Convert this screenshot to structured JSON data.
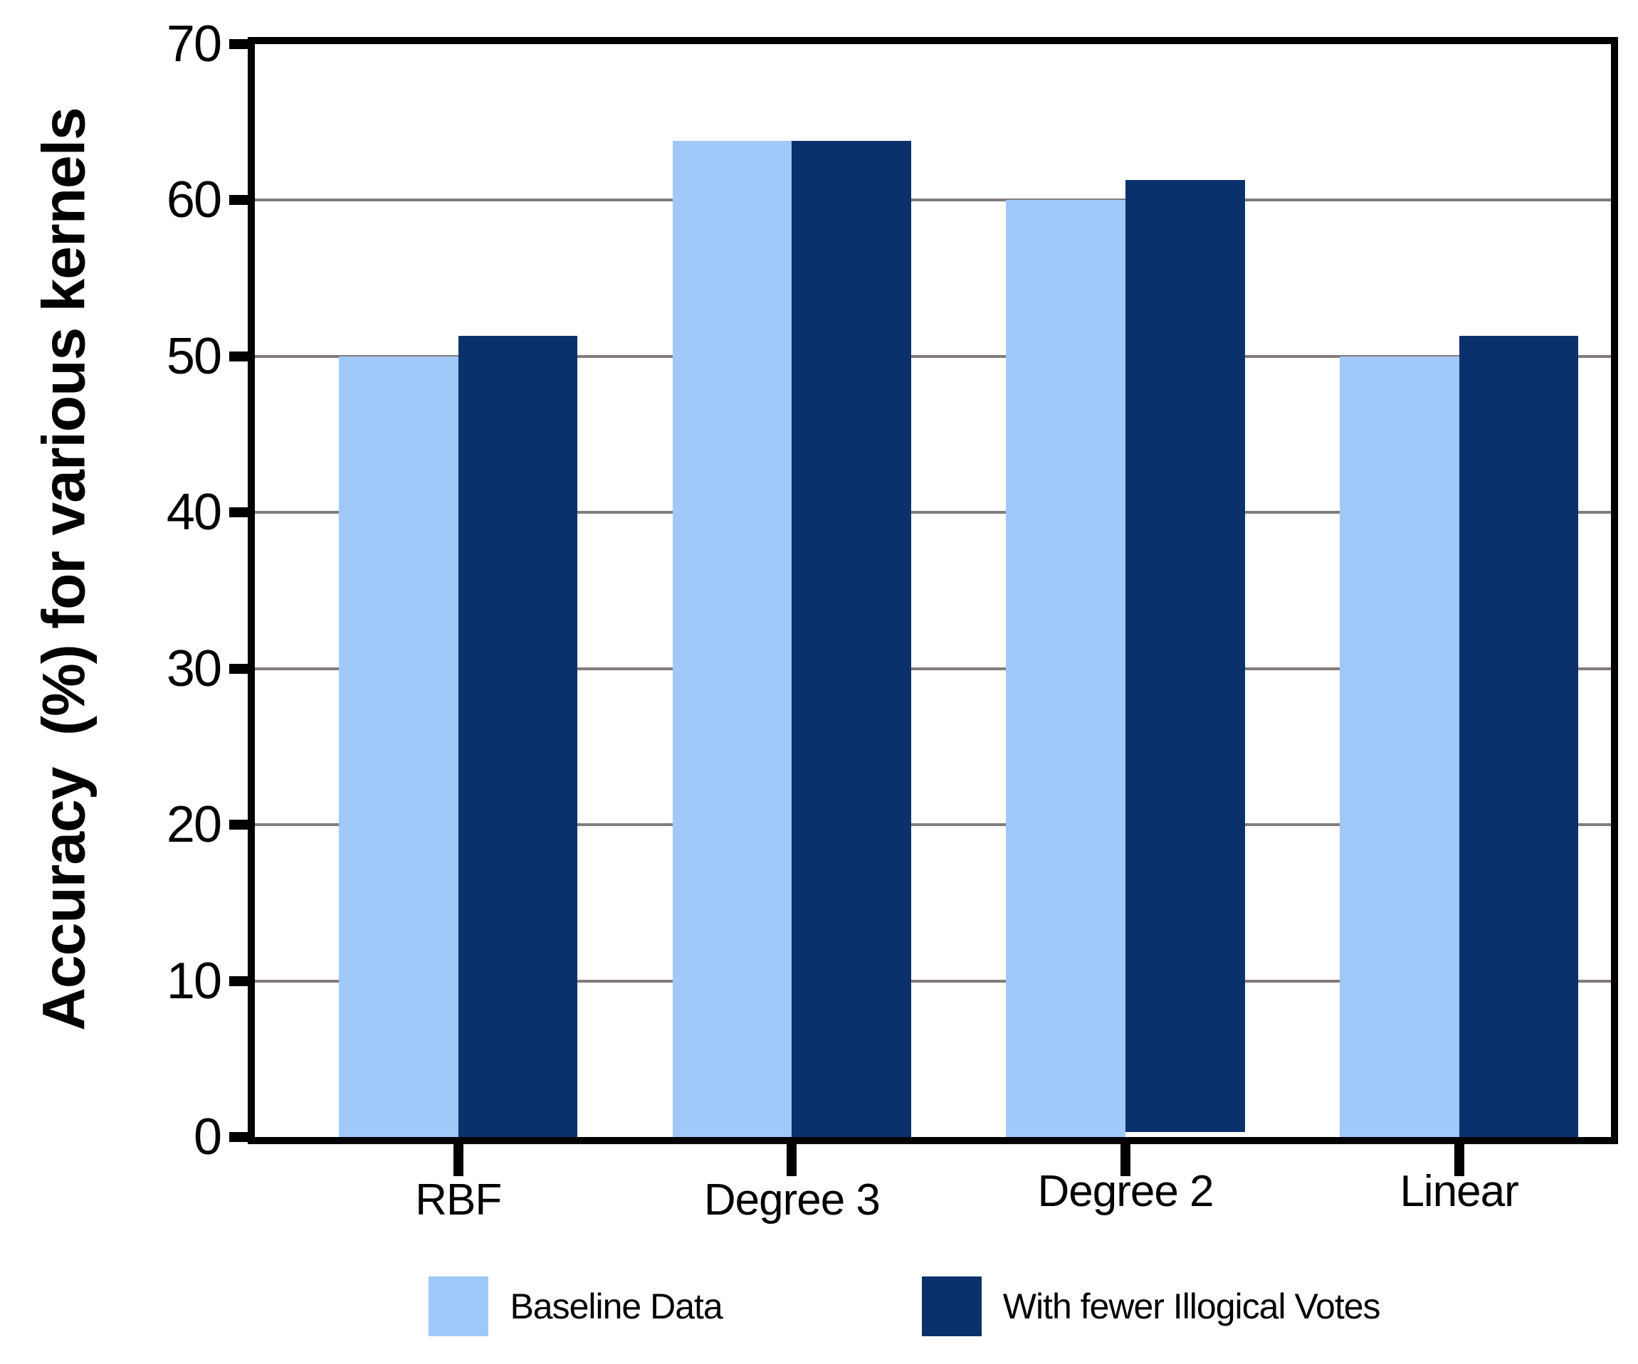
{
  "chart_data": {
    "type": "bar",
    "title": "",
    "xlabel": "",
    "ylabel": "Accuracy  (%) for various kernels",
    "categories": [
      "RBF",
      "Degree 3",
      "Degree 2",
      "Linear"
    ],
    "series": [
      {
        "name": "Baseline Data",
        "color": "#A0C8F8",
        "values": [
          50.0,
          63.8,
          60.0,
          50.0
        ],
        "y0": [
          0,
          0,
          0,
          0
        ]
      },
      {
        "name": "With fewer Illogical Votes",
        "color": "#0A316B",
        "values": [
          51.3,
          63.8,
          61.3,
          51.3
        ],
        "y0": [
          0,
          0,
          0.3,
          0
        ]
      }
    ],
    "ylim": [
      0,
      70
    ],
    "yticks": [
      0,
      10,
      20,
      30,
      40,
      50,
      60,
      70
    ],
    "grid": "horizontal",
    "gridline_color": "#847b7b",
    "frame_color": "#000000",
    "legend_position": "bottom"
  }
}
